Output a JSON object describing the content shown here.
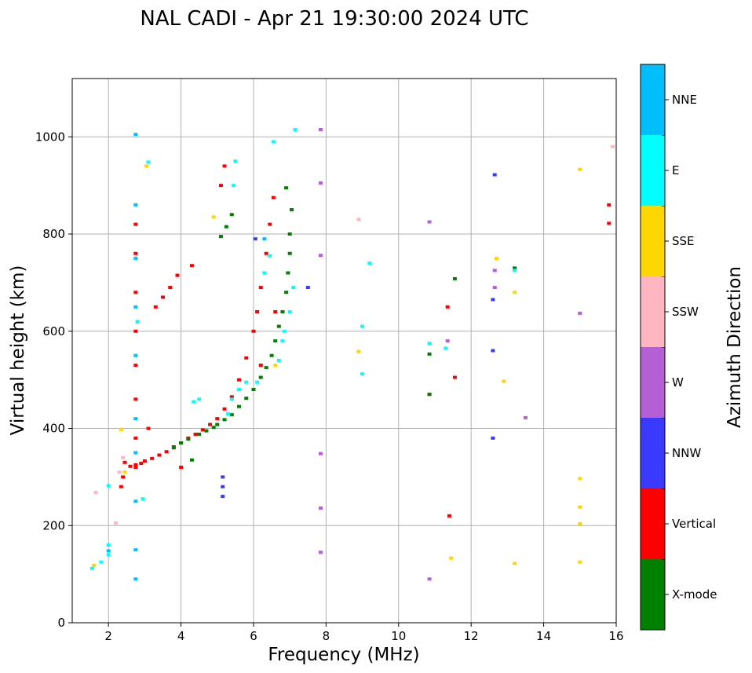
{
  "chart_data": {
    "type": "scatter",
    "title": "NAL CADI - Apr 21 19:30:00 2024 UTC",
    "xlabel": "Frequency (MHz)",
    "ylabel": "Virtual height (km)",
    "xlim": [
      1,
      16
    ],
    "ylim": [
      0,
      1120
    ],
    "xticks": [
      2,
      4,
      6,
      8,
      10,
      12,
      14,
      16
    ],
    "yticks": [
      0,
      200,
      400,
      600,
      800,
      1000
    ],
    "grid": true,
    "colorbar": {
      "label": "Azimuth Direction",
      "categories": [
        {
          "name": "X-mode",
          "color": "#008000"
        },
        {
          "name": "Vertical",
          "color": "#ff0000"
        },
        {
          "name": "NNW",
          "color": "#3a3aff"
        },
        {
          "name": "W",
          "color": "#b55fd6"
        },
        {
          "name": "SSW",
          "color": "#ffb6c1"
        },
        {
          "name": "SSE",
          "color": "#ffd700"
        },
        {
          "name": "E",
          "color": "#00ffff"
        },
        {
          "name": "NNE",
          "color": "#00bfff"
        }
      ]
    },
    "series": [
      {
        "name": "Vertical",
        "color": "#ff0000",
        "points": [
          [
            2.35,
            280
          ],
          [
            2.4,
            300
          ],
          [
            2.45,
            330
          ],
          [
            2.6,
            322
          ],
          [
            2.75,
            325
          ],
          [
            2.9,
            328
          ],
          [
            3.0,
            333
          ],
          [
            3.2,
            338
          ],
          [
            3.4,
            345
          ],
          [
            3.6,
            352
          ],
          [
            3.8,
            360
          ],
          [
            4.0,
            370
          ],
          [
            4.2,
            380
          ],
          [
            4.4,
            388
          ],
          [
            4.6,
            397
          ],
          [
            4.8,
            408
          ],
          [
            5.0,
            420
          ],
          [
            5.2,
            440
          ],
          [
            5.4,
            465
          ],
          [
            5.6,
            500
          ],
          [
            5.8,
            545
          ],
          [
            6.0,
            600
          ],
          [
            6.1,
            640
          ],
          [
            6.2,
            690
          ],
          [
            6.35,
            760
          ],
          [
            6.45,
            820
          ],
          [
            6.55,
            875
          ],
          [
            3.3,
            650
          ],
          [
            3.5,
            670
          ],
          [
            3.7,
            690
          ],
          [
            3.9,
            715
          ],
          [
            4.3,
            735
          ],
          [
            5.1,
            900
          ],
          [
            5.2,
            940
          ],
          [
            2.75,
            320
          ],
          [
            2.75,
            380
          ],
          [
            2.75,
            460
          ],
          [
            2.75,
            530
          ],
          [
            2.75,
            600
          ],
          [
            2.75,
            680
          ],
          [
            2.75,
            760
          ],
          [
            2.75,
            820
          ],
          [
            11.4,
            220
          ],
          [
            11.35,
            650
          ],
          [
            11.55,
            505
          ],
          [
            15.8,
            822
          ],
          [
            15.8,
            860
          ],
          [
            10.85,
            470
          ],
          [
            4.0,
            320
          ],
          [
            3.1,
            400
          ],
          [
            6.2,
            530
          ],
          [
            6.6,
            640
          ]
        ]
      },
      {
        "name": "X-mode",
        "color": "#008000",
        "points": [
          [
            3.8,
            362
          ],
          [
            4.0,
            370
          ],
          [
            4.2,
            378
          ],
          [
            4.5,
            388
          ],
          [
            4.7,
            395
          ],
          [
            4.9,
            402
          ],
          [
            5.0,
            408
          ],
          [
            5.2,
            418
          ],
          [
            5.4,
            428
          ],
          [
            5.6,
            445
          ],
          [
            5.8,
            462
          ],
          [
            6.0,
            480
          ],
          [
            6.2,
            505
          ],
          [
            6.35,
            525
          ],
          [
            6.5,
            550
          ],
          [
            6.6,
            580
          ],
          [
            6.7,
            610
          ],
          [
            6.8,
            640
          ],
          [
            6.9,
            680
          ],
          [
            6.95,
            720
          ],
          [
            7.0,
            760
          ],
          [
            7.0,
            800
          ],
          [
            7.05,
            850
          ],
          [
            6.9,
            895
          ],
          [
            5.1,
            795
          ],
          [
            5.25,
            815
          ],
          [
            5.4,
            840
          ],
          [
            11.55,
            708
          ],
          [
            13.2,
            730
          ],
          [
            10.85,
            553
          ],
          [
            10.85,
            470
          ],
          [
            4.3,
            335
          ]
        ]
      },
      {
        "name": "NNW",
        "color": "#3a3aff",
        "points": [
          [
            5.15,
            260
          ],
          [
            5.15,
            280
          ],
          [
            5.15,
            300
          ],
          [
            12.6,
            380
          ],
          [
            12.6,
            560
          ],
          [
            12.6,
            665
          ],
          [
            12.65,
            922
          ],
          [
            7.5,
            690
          ],
          [
            6.05,
            790
          ]
        ]
      },
      {
        "name": "W",
        "color": "#b55fd6",
        "points": [
          [
            7.85,
            145
          ],
          [
            7.85,
            236
          ],
          [
            7.85,
            348
          ],
          [
            7.85,
            756
          ],
          [
            7.85,
            905
          ],
          [
            7.85,
            1015
          ],
          [
            10.85,
            90
          ],
          [
            10.85,
            825
          ],
          [
            11.35,
            580
          ],
          [
            12.65,
            690
          ],
          [
            12.65,
            725
          ],
          [
            13.5,
            422
          ],
          [
            15.0,
            637
          ]
        ]
      },
      {
        "name": "SSW",
        "color": "#ffb6c1",
        "points": [
          [
            1.65,
            268
          ],
          [
            2.2,
            205
          ],
          [
            2.4,
            340
          ],
          [
            2.3,
            310
          ],
          [
            2.8,
            618
          ],
          [
            8.9,
            830
          ],
          [
            15.9,
            980
          ]
        ]
      },
      {
        "name": "SSE",
        "color": "#ffd700",
        "points": [
          [
            2.35,
            398
          ],
          [
            2.45,
            310
          ],
          [
            3.05,
            940
          ],
          [
            4.9,
            835
          ],
          [
            8.9,
            558
          ],
          [
            11.45,
            133
          ],
          [
            12.7,
            750
          ],
          [
            12.9,
            497
          ],
          [
            13.2,
            122
          ],
          [
            13.2,
            680
          ],
          [
            15.0,
            125
          ],
          [
            15.0,
            204
          ],
          [
            15.0,
            238
          ],
          [
            15.0,
            297
          ],
          [
            15.0,
            933
          ],
          [
            1.6,
            118
          ],
          [
            6.6,
            530
          ]
        ]
      },
      {
        "name": "E",
        "color": "#00ffff",
        "points": [
          [
            1.55,
            112
          ],
          [
            1.8,
            125
          ],
          [
            2.0,
            140
          ],
          [
            2.0,
            160
          ],
          [
            2.0,
            282
          ],
          [
            2.95,
            255
          ],
          [
            3.1,
            948
          ],
          [
            2.8,
            620
          ],
          [
            4.35,
            455
          ],
          [
            4.5,
            460
          ],
          [
            5.3,
            430
          ],
          [
            5.4,
            460
          ],
          [
            5.5,
            950
          ],
          [
            5.45,
            900
          ],
          [
            5.6,
            480
          ],
          [
            5.8,
            495
          ],
          [
            6.1,
            495
          ],
          [
            6.3,
            720
          ],
          [
            6.45,
            755
          ],
          [
            6.55,
            990
          ],
          [
            6.7,
            540
          ],
          [
            6.8,
            580
          ],
          [
            6.85,
            600
          ],
          [
            7.0,
            640
          ],
          [
            7.1,
            690
          ],
          [
            7.15,
            1015
          ],
          [
            9.0,
            610
          ],
          [
            9.0,
            512
          ],
          [
            9.2,
            740
          ],
          [
            10.85,
            575
          ],
          [
            11.3,
            565
          ],
          [
            13.2,
            725
          ]
        ]
      },
      {
        "name": "NNE",
        "color": "#00bfff",
        "points": [
          [
            2.75,
            90
          ],
          [
            2.75,
            150
          ],
          [
            2.75,
            250
          ],
          [
            2.75,
            350
          ],
          [
            2.75,
            420
          ],
          [
            2.75,
            550
          ],
          [
            2.75,
            650
          ],
          [
            2.75,
            750
          ],
          [
            2.75,
            860
          ],
          [
            2.75,
            1005
          ],
          [
            2.0,
            148
          ],
          [
            6.3,
            790
          ]
        ]
      }
    ]
  }
}
